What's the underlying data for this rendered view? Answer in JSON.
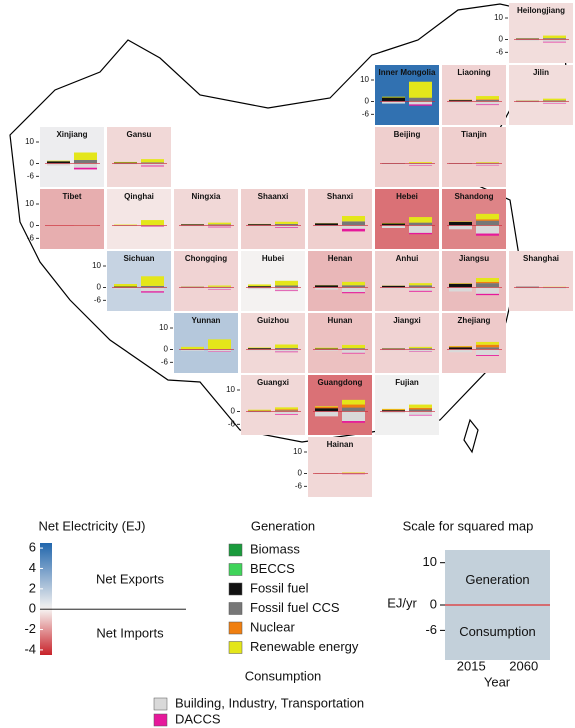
{
  "chart_data": {
    "type": "tile-bar-map",
    "generation": {
      "title": "Generation",
      "items": [
        {
          "name": "Biomass",
          "color": "#1a9b3c"
        },
        {
          "name": "BECCS",
          "color": "#3fd45a"
        },
        {
          "name": "Fossil fuel",
          "color": "#111111"
        },
        {
          "name": "Fossil fuel CCS",
          "color": "#777777"
        },
        {
          "name": "Nuclear",
          "color": "#f07f10"
        },
        {
          "name": "Renewable energy",
          "color": "#e4e61a"
        }
      ]
    },
    "consumption": {
      "title": "Consumption",
      "items": [
        {
          "name": "Building, Industry, Transportation",
          "color": "#d9d9d9"
        },
        {
          "name": "DACCS",
          "color": "#e6199b"
        }
      ]
    },
    "colorbar": {
      "title": "Net Electricity (EJ)",
      "clim": [
        -4.5,
        6.5
      ],
      "ticks": [
        6,
        4,
        2,
        0,
        -2,
        -4
      ],
      "colors": {
        "low": "#c8222a",
        "mid": "#f7f4f2",
        "high": "#2166ac"
      },
      "high_label": "Net Exports",
      "low_label": "Net Imports",
      "high_color": "#2a62b8",
      "low_color": "#c01818"
    },
    "tile_ylim": [
      -11,
      17
    ],
    "tile_yticks": [
      10,
      0,
      -6
    ],
    "provinces": [
      {
        "name": "Heilongjiang",
        "net": -0.5,
        "axis": true,
        "values": [
          [
            0,
            0,
            0.4,
            0,
            0,
            0.1,
            -0.6,
            0
          ],
          [
            0.1,
            0.1,
            0,
            0.4,
            0,
            1.2,
            -1.1,
            -0.3
          ]
        ]
      },
      {
        "name": "Inner Mongolia",
        "net": 6,
        "axis": true,
        "values": [
          [
            0,
            0,
            1.8,
            0,
            0,
            0.4,
            -1.0,
            0
          ],
          [
            0,
            0.2,
            0,
            1.5,
            0,
            7.5,
            -1.4,
            -0.6
          ]
        ]
      },
      {
        "name": "Liaoning",
        "net": -0.7,
        "axis": false,
        "values": [
          [
            0,
            0,
            0.6,
            0,
            0.2,
            0.1,
            -0.9,
            0
          ],
          [
            0,
            0.1,
            0,
            0.6,
            0.3,
            1.5,
            -1.4,
            -0.3
          ]
        ]
      },
      {
        "name": "Jilin",
        "net": -0.5,
        "axis": false,
        "values": [
          [
            0,
            0,
            0.3,
            0,
            0,
            0.1,
            -0.4,
            0
          ],
          [
            0.1,
            0.1,
            0,
            0.3,
            0,
            0.8,
            -0.8,
            -0.2
          ]
        ]
      },
      {
        "name": "Xinjiang",
        "net": 0.3,
        "axis": true,
        "values": [
          [
            0,
            0,
            1.0,
            0,
            0,
            0.3,
            -1.0,
            0
          ],
          [
            0,
            0.1,
            0,
            1.5,
            0,
            3.5,
            -2.0,
            -0.8
          ]
        ]
      },
      {
        "name": "Gansu",
        "net": -0.6,
        "axis": false,
        "values": [
          [
            0,
            0,
            0.4,
            0,
            0,
            0.3,
            -0.5,
            0
          ],
          [
            0,
            0.1,
            0,
            0.4,
            0,
            1.5,
            -1.0,
            -0.4
          ]
        ]
      },
      {
        "name": "Beijing",
        "net": -0.8,
        "axis": false,
        "values": [
          [
            0,
            0,
            0.2,
            0,
            0,
            0,
            -0.4,
            0
          ],
          [
            0,
            0,
            0,
            0.2,
            0,
            0.4,
            -0.8,
            -0.2
          ]
        ]
      },
      {
        "name": "Tianjin",
        "net": -0.8,
        "axis": false,
        "values": [
          [
            0,
            0,
            0.2,
            0,
            0,
            0,
            -0.3,
            0
          ],
          [
            0,
            0,
            0,
            0.3,
            0,
            0.3,
            -0.7,
            -0.2
          ]
        ]
      },
      {
        "name": "Tibet",
        "net": -1.5,
        "axis": true,
        "values": [
          [
            0,
            0,
            0,
            0,
            0,
            0.05,
            -0.05,
            0
          ],
          [
            0,
            0,
            0,
            0,
            0,
            0.1,
            -0.2,
            0
          ]
        ]
      },
      {
        "name": "Qinghai",
        "net": -0.3,
        "axis": false,
        "values": [
          [
            0,
            0,
            0.1,
            0,
            0,
            0.3,
            -0.3,
            0
          ],
          [
            0,
            0,
            0,
            0.1,
            0,
            2.4,
            -0.5,
            -0.2
          ]
        ]
      },
      {
        "name": "Ningxia",
        "net": -0.6,
        "axis": false,
        "values": [
          [
            0,
            0,
            0.5,
            0,
            0,
            0.1,
            -0.4,
            0
          ],
          [
            0,
            0,
            0,
            0.5,
            0,
            0.8,
            -0.6,
            -0.3
          ]
        ]
      },
      {
        "name": "Shaanxi",
        "net": -0.8,
        "axis": false,
        "values": [
          [
            0,
            0,
            0.6,
            0,
            0,
            0.1,
            -0.5,
            0
          ],
          [
            0,
            0.1,
            0,
            0.6,
            0,
            1.0,
            -0.9,
            -0.3
          ]
        ]
      },
      {
        "name": "Shanxi",
        "net": -0.8,
        "axis": false,
        "values": [
          [
            0,
            0,
            1.0,
            0,
            0,
            0.1,
            -0.7,
            0
          ],
          [
            0,
            0.1,
            0,
            1.8,
            0,
            2.5,
            -1.6,
            -1.2
          ]
        ]
      },
      {
        "name": "Hebei",
        "net": -2.8,
        "axis": false,
        "values": [
          [
            0,
            0,
            0.9,
            0,
            0,
            0.2,
            -1.2,
            0
          ],
          [
            0,
            0.1,
            0,
            1.2,
            0,
            2.6,
            -3.5,
            -0.6
          ]
        ]
      },
      {
        "name": "Shandong",
        "net": -2.4,
        "axis": false,
        "values": [
          [
            0,
            0,
            1.7,
            0,
            0,
            0.2,
            -1.8,
            0
          ],
          [
            0.1,
            0.1,
            0,
            2.0,
            0.6,
            2.6,
            -3.8,
            -1.0
          ]
        ]
      },
      {
        "name": "Sichuan",
        "net": 1.5,
        "axis": true,
        "values": [
          [
            0,
            0,
            0.4,
            0,
            0,
            1.2,
            -0.9,
            0
          ],
          [
            0.1,
            0.1,
            0,
            0.5,
            0,
            4.5,
            -1.8,
            -0.6
          ]
        ]
      },
      {
        "name": "Chongqing",
        "net": -0.7,
        "axis": false,
        "values": [
          [
            0,
            0,
            0.3,
            0,
            0,
            0.1,
            -0.3,
            0
          ],
          [
            0,
            0,
            0,
            0.3,
            0,
            0.6,
            -0.8,
            -0.2
          ]
        ]
      },
      {
        "name": "Hubei",
        "net": 0.1,
        "axis": false,
        "values": [
          [
            0,
            0,
            0.6,
            0,
            0,
            0.8,
            -0.8,
            0
          ],
          [
            0,
            0.1,
            0,
            0.8,
            0,
            2.2,
            -1.4,
            -0.3
          ]
        ]
      },
      {
        "name": "Henan",
        "net": -1.3,
        "axis": false,
        "values": [
          [
            0,
            0,
            1.0,
            0,
            0,
            0.1,
            -1.0,
            0
          ],
          [
            0,
            0.1,
            0,
            0.9,
            0,
            1.6,
            -2.2,
            -0.5
          ]
        ]
      },
      {
        "name": "Anhui",
        "net": -0.8,
        "axis": false,
        "values": [
          [
            0,
            0,
            0.8,
            0,
            0,
            0.1,
            -0.7,
            0
          ],
          [
            0,
            0.1,
            0,
            0.9,
            0,
            1.0,
            -1.6,
            -0.4
          ]
        ]
      },
      {
        "name": "Jiangsu",
        "net": -1.2,
        "axis": false,
        "values": [
          [
            0,
            0,
            1.7,
            0,
            0.1,
            0.2,
            -1.9,
            0
          ],
          [
            0.1,
            0.1,
            0,
            1.8,
            0.6,
            1.8,
            -3.0,
            -0.6
          ]
        ]
      },
      {
        "name": "Shanghai",
        "net": -0.6,
        "axis": false,
        "values": [
          [
            0,
            0,
            0.3,
            0,
            0,
            0,
            -0.5,
            0
          ],
          [
            0,
            0,
            0,
            0.2,
            0,
            0.1,
            -0.7,
            0
          ]
        ]
      },
      {
        "name": "Yunnan",
        "net": 2,
        "axis": true,
        "values": [
          [
            0,
            0,
            0.2,
            0,
            0,
            1.0,
            -0.6,
            0
          ],
          [
            0,
            0,
            0,
            0.2,
            0,
            4.5,
            -1.0,
            -0.2
          ]
        ]
      },
      {
        "name": "Guizhou",
        "net": -0.6,
        "axis": false,
        "values": [
          [
            0,
            0,
            0.6,
            0,
            0,
            0.3,
            -0.5,
            0
          ],
          [
            0,
            0,
            0,
            0.7,
            0,
            1.6,
            -1.0,
            -0.3
          ]
        ]
      },
      {
        "name": "Hunan",
        "net": -1.1,
        "axis": false,
        "values": [
          [
            0,
            0,
            0.4,
            0,
            0,
            0.4,
            -0.6,
            0
          ],
          [
            0,
            0.1,
            0,
            0.5,
            0,
            1.5,
            -1.6,
            -0.3
          ]
        ]
      },
      {
        "name": "Jiangxi",
        "net": -0.7,
        "axis": false,
        "values": [
          [
            0,
            0,
            0.4,
            0,
            0,
            0.1,
            -0.4,
            0
          ],
          [
            0,
            0.1,
            0,
            0.5,
            0,
            0.6,
            -1.0,
            -0.2
          ]
        ]
      },
      {
        "name": "Zhejiang",
        "net": -0.9,
        "axis": false,
        "values": [
          [
            0,
            0,
            1.0,
            0,
            0.4,
            0.2,
            -1.3,
            0
          ],
          [
            0,
            0.1,
            0,
            0.9,
            1.2,
            1.3,
            -2.6,
            -0.4
          ]
        ]
      },
      {
        "name": "Guangxi",
        "net": -0.6,
        "axis": true,
        "values": [
          [
            0,
            0,
            0.3,
            0,
            0.1,
            0.4,
            -0.6,
            0
          ],
          [
            0,
            0.1,
            0,
            0.4,
            0.5,
            0.9,
            -1.2,
            -0.3
          ]
        ]
      },
      {
        "name": "Guangdong",
        "net": -2.8,
        "axis": false,
        "values": [
          [
            0,
            0,
            1.5,
            0,
            0.6,
            0.3,
            -2.3,
            0
          ],
          [
            0.1,
            0.1,
            0,
            1.6,
            1.4,
            2.2,
            -4.5,
            -0.8
          ]
        ]
      },
      {
        "name": "Fujian",
        "net": 0.2,
        "axis": false,
        "values": [
          [
            0,
            0,
            0.6,
            0,
            0.3,
            0.3,
            -0.8,
            0
          ],
          [
            0,
            0.1,
            0,
            0.8,
            0.8,
            1.5,
            -1.6,
            -0.3
          ]
        ]
      },
      {
        "name": "Hainan",
        "net": -0.6,
        "axis": true,
        "values": [
          [
            0,
            0,
            0.1,
            0,
            0.05,
            0,
            -0.15,
            0
          ],
          [
            0,
            0,
            0,
            0.1,
            0.2,
            0.2,
            -0.4,
            -0.1
          ]
        ]
      }
    ],
    "scale_panel": {
      "title": "Scale for squared map",
      "ylabel": "EJ/yr",
      "ylim": [
        -13,
        13
      ],
      "yticks": [
        10,
        0,
        -6
      ],
      "categories": [
        "2015",
        "2060"
      ],
      "xlabel": "Year",
      "top_label": "Generation",
      "bottom_label": "Consumption",
      "color": "#c3d0da",
      "line_color": "#e03030"
    }
  }
}
